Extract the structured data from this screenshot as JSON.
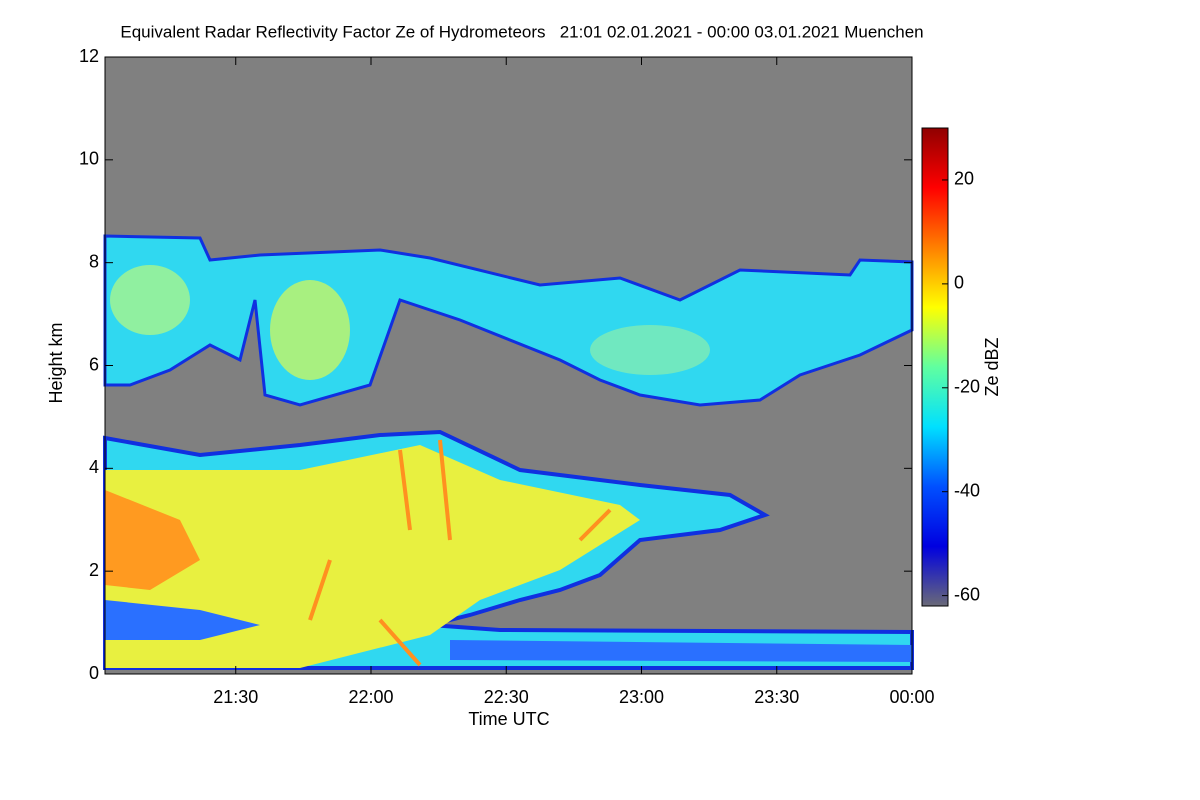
{
  "chart_data": {
    "type": "heatmap",
    "title": "Equivalent Radar Reflectivity Factor Ze of Hydrometeors   21:01 02.01.2021 - 00:00 03.01.2021 Muenchen",
    "x_label": "Time UTC",
    "y_label": "Height km",
    "xlim": [
      21.0167,
      24
    ],
    "xticks": [
      {
        "value": 21.5,
        "label": "21:30"
      },
      {
        "value": 22,
        "label": "22:00"
      },
      {
        "value": 22.5,
        "label": "22:30"
      },
      {
        "value": 23,
        "label": "23:00"
      },
      {
        "value": 23.5,
        "label": "23:30"
      },
      {
        "value": 24,
        "label": "00:00"
      }
    ],
    "ylim": [
      0,
      12
    ],
    "yticks": [
      0,
      2,
      4,
      6,
      8,
      10,
      12
    ],
    "colorbar": {
      "label": "Ze dBZ",
      "lim": [
        -62,
        30
      ],
      "ticks": [
        -60,
        -40,
        -20,
        0,
        20
      ],
      "colors": [
        "#6a6a78",
        "#0000e0",
        "#0050ff",
        "#00e0ff",
        "#60ffa0",
        "#ffff00",
        "#ff8000",
        "#ff0000",
        "#900000"
      ]
    }
  }
}
